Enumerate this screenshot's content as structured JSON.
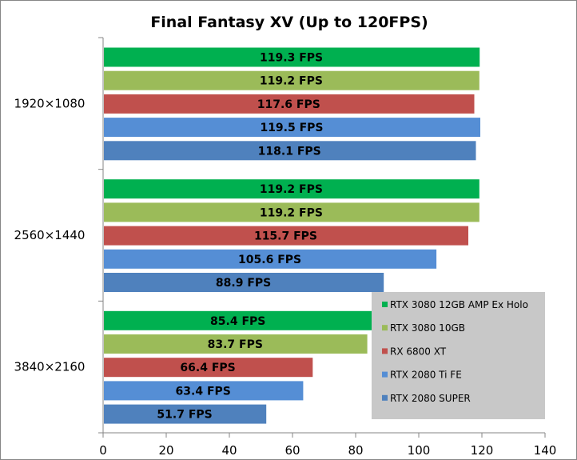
{
  "chart_data": {
    "type": "bar",
    "orientation": "horizontal",
    "title": "Final Fantasy XV (Up to 120FPS)",
    "xlabel": "",
    "ylabel": "",
    "xlim": [
      0,
      140
    ],
    "x_ticks": [
      0,
      20,
      40,
      60,
      80,
      100,
      120,
      140
    ],
    "grid": false,
    "legend_position": "bottom-right",
    "value_suffix": " FPS",
    "categories": [
      "1920×1080",
      "2560×1440",
      "3840×2160"
    ],
    "series": [
      {
        "name": "RTX 3080 12GB AMP Ex Holo",
        "color": "#00B050",
        "values": [
          119.3,
          119.2,
          85.4
        ]
      },
      {
        "name": "RTX 3080 10GB",
        "color": "#9BBB59",
        "values": [
          119.2,
          119.2,
          83.7
        ]
      },
      {
        "name": "RX 6800 XT",
        "color": "#C0504D",
        "values": [
          117.6,
          115.7,
          66.4
        ]
      },
      {
        "name": "RTX 2080 Ti FE",
        "color": "#558ED5",
        "values": [
          119.5,
          105.6,
          63.4
        ]
      },
      {
        "name": "RTX 2080 SUPER",
        "color": "#4F81BD",
        "values": [
          118.1,
          88.9,
          51.7
        ]
      }
    ]
  }
}
